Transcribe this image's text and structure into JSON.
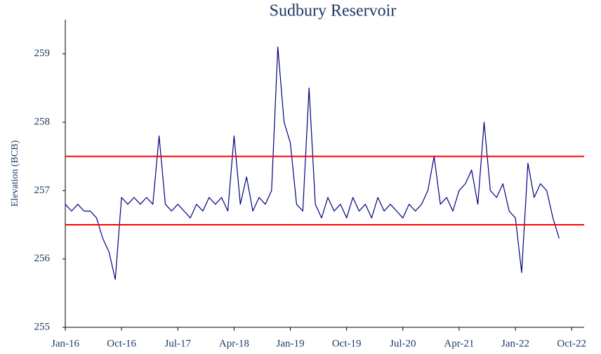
{
  "chart_data": {
    "type": "line",
    "title": "Sudbury Reservoir",
    "y_label": "Elevation (BCB)",
    "x": [
      "2016-01",
      "2016-02",
      "2016-03",
      "2016-04",
      "2016-05",
      "2016-06",
      "2016-07",
      "2016-08",
      "2016-09",
      "2016-10",
      "2016-11",
      "2016-12",
      "2017-01",
      "2017-02",
      "2017-03",
      "2017-04",
      "2017-05",
      "2017-06",
      "2017-07",
      "2017-08",
      "2017-09",
      "2017-10",
      "2017-11",
      "2017-12",
      "2018-01",
      "2018-02",
      "2018-03",
      "2018-04",
      "2018-05",
      "2018-06",
      "2018-07",
      "2018-08",
      "2018-09",
      "2018-10",
      "2018-11",
      "2018-12",
      "2019-01",
      "2019-02",
      "2019-03",
      "2019-04",
      "2019-05",
      "2019-06",
      "2019-07",
      "2019-08",
      "2019-09",
      "2019-10",
      "2019-11",
      "2019-12",
      "2020-01",
      "2020-02",
      "2020-03",
      "2020-04",
      "2020-05",
      "2020-06",
      "2020-07",
      "2020-08",
      "2020-09",
      "2020-10",
      "2020-11",
      "2020-12",
      "2021-01",
      "2021-02",
      "2021-03",
      "2021-04",
      "2021-05",
      "2021-06",
      "2021-07",
      "2021-08",
      "2021-09",
      "2021-10",
      "2021-11",
      "2021-12",
      "2022-01",
      "2022-02",
      "2022-03",
      "2022-04",
      "2022-05",
      "2022-06",
      "2022-07",
      "2022-08"
    ],
    "series": [
      {
        "color": "#000080",
        "values": [
          256.8,
          256.7,
          256.8,
          256.7,
          256.7,
          256.6,
          256.3,
          256.1,
          255.7,
          256.9,
          256.8,
          256.9,
          256.8,
          256.9,
          256.8,
          257.8,
          256.8,
          256.7,
          256.8,
          256.7,
          256.6,
          256.8,
          256.7,
          256.9,
          256.8,
          256.9,
          256.7,
          257.8,
          256.8,
          257.2,
          256.7,
          256.9,
          256.8,
          257.0,
          259.1,
          258.0,
          257.7,
          256.8,
          256.7,
          258.5,
          256.8,
          256.6,
          256.9,
          256.7,
          256.8,
          256.6,
          256.9,
          256.7,
          256.8,
          256.6,
          256.9,
          256.7,
          256.8,
          256.7,
          256.6,
          256.8,
          256.7,
          256.8,
          257.0,
          257.5,
          256.8,
          256.9,
          256.7,
          257.0,
          257.1,
          257.3,
          256.8,
          258.0,
          257.0,
          256.9,
          257.1,
          256.7,
          256.6,
          255.8,
          257.4,
          256.9,
          257.1,
          257.0,
          256.6,
          256.3
        ]
      }
    ],
    "reference_lines": [
      {
        "value": 257.5,
        "color": "#ff0000"
      },
      {
        "value": 256.5,
        "color": "#ff0000"
      }
    ],
    "xlim": [
      "2016-01",
      "2022-12"
    ],
    "xticks": [
      {
        "value": "2016-01",
        "label": "Jan-16"
      },
      {
        "value": "2016-10",
        "label": "Oct-16"
      },
      {
        "value": "2017-07",
        "label": "Jul-17"
      },
      {
        "value": "2018-04",
        "label": "Apr-18"
      },
      {
        "value": "2019-01",
        "label": "Jan-19"
      },
      {
        "value": "2019-10",
        "label": "Oct-19"
      },
      {
        "value": "2020-07",
        "label": "Jul-20"
      },
      {
        "value": "2021-04",
        "label": "Apr-21"
      },
      {
        "value": "2022-01",
        "label": "Jan-22"
      },
      {
        "value": "2022-10",
        "label": "Oct-22"
      }
    ],
    "ylim": [
      255,
      259.5
    ],
    "yticks": [
      255,
      256,
      257,
      258,
      259
    ],
    "grid": false
  }
}
